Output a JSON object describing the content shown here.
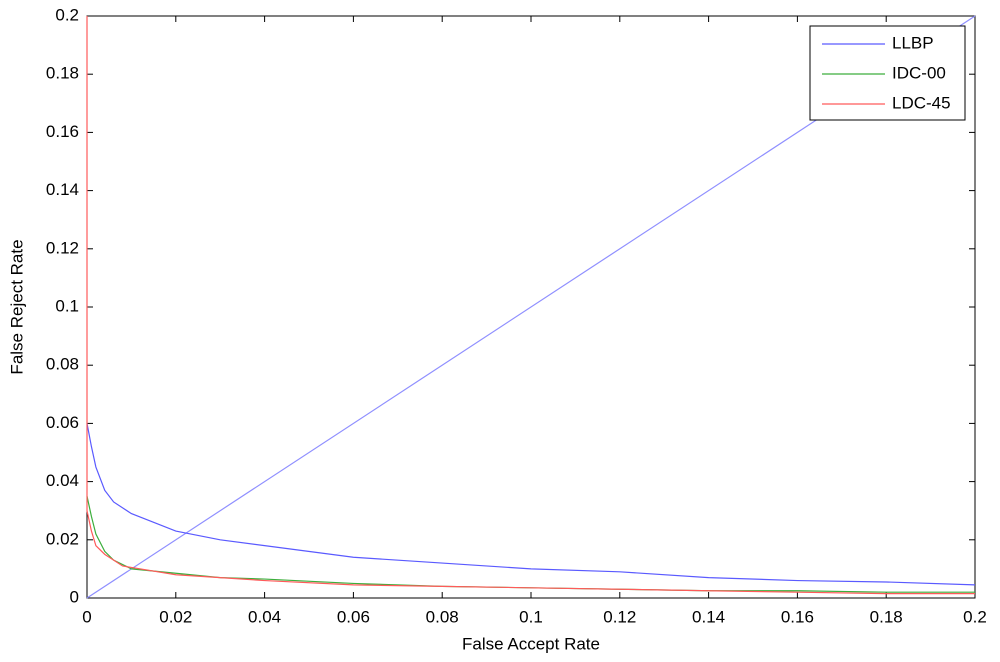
{
  "chart_data": {
    "type": "line",
    "xlabel": "False Accept Rate",
    "ylabel": "False Reject Rate",
    "xlim": [
      0,
      0.2
    ],
    "ylim": [
      0,
      0.2
    ],
    "xticks": [
      0,
      0.02,
      0.04,
      0.06,
      0.08,
      0.1,
      0.12,
      0.14,
      0.16,
      0.18,
      0.2
    ],
    "yticks": [
      0,
      0.02,
      0.04,
      0.06,
      0.08,
      0.1,
      0.12,
      0.14,
      0.16,
      0.18,
      0.2
    ],
    "legend": "upper right",
    "reference_line": {
      "color": "#8f8fff",
      "x": [
        0,
        0.2
      ],
      "values": [
        0,
        0.2
      ]
    },
    "series": [
      {
        "name": "LLBP",
        "color": "#5a5aff",
        "x": [
          0,
          0.001,
          0.002,
          0.004,
          0.006,
          0.01,
          0.015,
          0.02,
          0.03,
          0.04,
          0.06,
          0.08,
          0.1,
          0.12,
          0.14,
          0.16,
          0.18,
          0.2
        ],
        "values": [
          0.06,
          0.052,
          0.045,
          0.037,
          0.033,
          0.029,
          0.026,
          0.023,
          0.02,
          0.018,
          0.014,
          0.012,
          0.01,
          0.009,
          0.007,
          0.006,
          0.0055,
          0.0045
        ]
      },
      {
        "name": "IDC-00",
        "color": "#3cae3c",
        "x": [
          0,
          0.001,
          0.002,
          0.004,
          0.006,
          0.01,
          0.02,
          0.03,
          0.04,
          0.06,
          0.08,
          0.1,
          0.12,
          0.14,
          0.16,
          0.18,
          0.2
        ],
        "values": [
          0.035,
          0.028,
          0.022,
          0.016,
          0.013,
          0.01,
          0.0085,
          0.007,
          0.0065,
          0.005,
          0.004,
          0.0035,
          0.003,
          0.0025,
          0.0025,
          0.002,
          0.002
        ]
      },
      {
        "name": "LDC-45",
        "color": "#ff5a5a",
        "x": [
          0,
          0,
          0.001,
          0.002,
          0.004,
          0.006,
          0.008,
          0.01,
          0.02,
          0.03,
          0.04,
          0.06,
          0.08,
          0.1,
          0.12,
          0.14,
          0.16,
          0.18,
          0.2
        ],
        "values": [
          0.2,
          0.03,
          0.023,
          0.018,
          0.015,
          0.013,
          0.011,
          0.0105,
          0.008,
          0.007,
          0.006,
          0.0045,
          0.004,
          0.0035,
          0.003,
          0.0025,
          0.002,
          0.0015,
          0.0015
        ]
      }
    ]
  }
}
